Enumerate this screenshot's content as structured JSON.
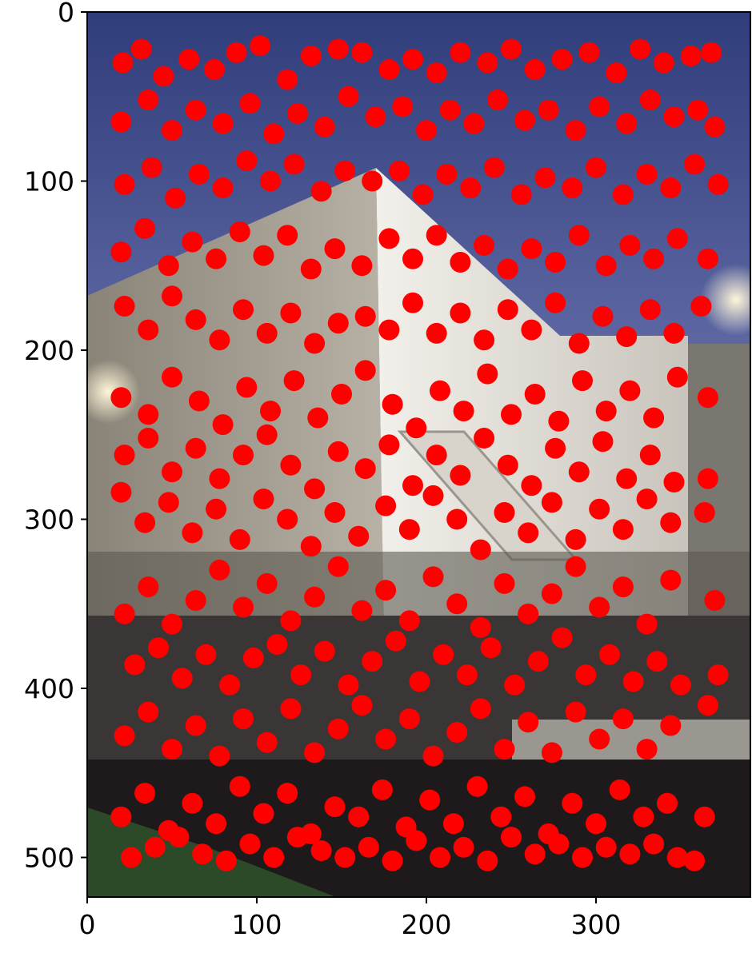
{
  "chart_data": {
    "type": "scatter",
    "title": "",
    "xlabel": "",
    "ylabel": "",
    "xlim": [
      0,
      390
    ],
    "ylim": [
      525,
      0
    ],
    "y_inverted": true,
    "grid": false,
    "legend": "none",
    "background": "photograph of a lit building with a staircase at dusk",
    "marker_color": "#ff0000",
    "marker_shape": "circle",
    "x_ticks": [
      {
        "value": 0,
        "label": "0"
      },
      {
        "value": 100,
        "label": "100"
      },
      {
        "value": 200,
        "label": "200"
      },
      {
        "value": 300,
        "label": "300"
      }
    ],
    "y_ticks": [
      {
        "value": 0,
        "label": "0"
      },
      {
        "value": 100,
        "label": "100"
      },
      {
        "value": 200,
        "label": "200"
      },
      {
        "value": 300,
        "label": "300"
      },
      {
        "value": 400,
        "label": "400"
      },
      {
        "value": 500,
        "label": "500"
      }
    ],
    "series": [
      {
        "points": [
          [
            21,
            30
          ],
          [
            32,
            22
          ],
          [
            45,
            38
          ],
          [
            60,
            28
          ],
          [
            75,
            34
          ],
          [
            88,
            24
          ],
          [
            102,
            20
          ],
          [
            118,
            40
          ],
          [
            132,
            26
          ],
          [
            148,
            22
          ],
          [
            162,
            24
          ],
          [
            178,
            34
          ],
          [
            192,
            28
          ],
          [
            206,
            36
          ],
          [
            220,
            24
          ],
          [
            236,
            30
          ],
          [
            250,
            22
          ],
          [
            264,
            34
          ],
          [
            280,
            28
          ],
          [
            296,
            24
          ],
          [
            312,
            36
          ],
          [
            326,
            22
          ],
          [
            340,
            30
          ],
          [
            356,
            26
          ],
          [
            368,
            24
          ],
          [
            20,
            65
          ],
          [
            36,
            52
          ],
          [
            50,
            70
          ],
          [
            64,
            58
          ],
          [
            80,
            66
          ],
          [
            96,
            54
          ],
          [
            110,
            72
          ],
          [
            124,
            60
          ],
          [
            140,
            68
          ],
          [
            154,
            50
          ],
          [
            170,
            62
          ],
          [
            186,
            56
          ],
          [
            200,
            70
          ],
          [
            214,
            58
          ],
          [
            228,
            66
          ],
          [
            242,
            52
          ],
          [
            258,
            64
          ],
          [
            272,
            58
          ],
          [
            288,
            70
          ],
          [
            302,
            56
          ],
          [
            318,
            66
          ],
          [
            332,
            52
          ],
          [
            346,
            62
          ],
          [
            360,
            58
          ],
          [
            370,
            68
          ],
          [
            22,
            102
          ],
          [
            38,
            92
          ],
          [
            52,
            110
          ],
          [
            66,
            96
          ],
          [
            80,
            104
          ],
          [
            94,
            88
          ],
          [
            108,
            100
          ],
          [
            122,
            90
          ],
          [
            138,
            106
          ],
          [
            152,
            94
          ],
          [
            168,
            100
          ],
          [
            184,
            94
          ],
          [
            198,
            108
          ],
          [
            212,
            96
          ],
          [
            226,
            104
          ],
          [
            240,
            92
          ],
          [
            256,
            108
          ],
          [
            270,
            98
          ],
          [
            286,
            104
          ],
          [
            300,
            92
          ],
          [
            316,
            108
          ],
          [
            330,
            96
          ],
          [
            344,
            104
          ],
          [
            358,
            90
          ],
          [
            372,
            102
          ],
          [
            20,
            142
          ],
          [
            34,
            128
          ],
          [
            48,
            150
          ],
          [
            62,
            136
          ],
          [
            76,
            146
          ],
          [
            90,
            130
          ],
          [
            104,
            144
          ],
          [
            118,
            132
          ],
          [
            132,
            152
          ],
          [
            146,
            140
          ],
          [
            162,
            150
          ],
          [
            178,
            134
          ],
          [
            192,
            146
          ],
          [
            206,
            132
          ],
          [
            220,
            148
          ],
          [
            234,
            138
          ],
          [
            248,
            152
          ],
          [
            262,
            140
          ],
          [
            276,
            148
          ],
          [
            290,
            132
          ],
          [
            306,
            150
          ],
          [
            320,
            138
          ],
          [
            334,
            146
          ],
          [
            348,
            134
          ],
          [
            366,
            146
          ],
          [
            22,
            174
          ],
          [
            36,
            188
          ],
          [
            50,
            168
          ],
          [
            64,
            182
          ],
          [
            78,
            194
          ],
          [
            92,
            176
          ],
          [
            106,
            190
          ],
          [
            120,
            178
          ],
          [
            134,
            196
          ],
          [
            148,
            184
          ],
          [
            164,
            180
          ],
          [
            178,
            188
          ],
          [
            192,
            172
          ],
          [
            206,
            190
          ],
          [
            220,
            178
          ],
          [
            234,
            194
          ],
          [
            248,
            176
          ],
          [
            262,
            188
          ],
          [
            276,
            172
          ],
          [
            290,
            196
          ],
          [
            304,
            180
          ],
          [
            318,
            192
          ],
          [
            332,
            176
          ],
          [
            346,
            190
          ],
          [
            362,
            174
          ],
          [
            20,
            228
          ],
          [
            36,
            238
          ],
          [
            50,
            216
          ],
          [
            66,
            230
          ],
          [
            80,
            244
          ],
          [
            94,
            222
          ],
          [
            108,
            236
          ],
          [
            122,
            218
          ],
          [
            136,
            240
          ],
          [
            150,
            226
          ],
          [
            164,
            212
          ],
          [
            180,
            232
          ],
          [
            194,
            246
          ],
          [
            208,
            224
          ],
          [
            222,
            236
          ],
          [
            236,
            214
          ],
          [
            250,
            238
          ],
          [
            264,
            226
          ],
          [
            278,
            242
          ],
          [
            292,
            218
          ],
          [
            306,
            236
          ],
          [
            320,
            224
          ],
          [
            334,
            240
          ],
          [
            348,
            216
          ],
          [
            366,
            228
          ],
          [
            22,
            262
          ],
          [
            36,
            252
          ],
          [
            50,
            272
          ],
          [
            64,
            258
          ],
          [
            78,
            276
          ],
          [
            92,
            262
          ],
          [
            106,
            250
          ],
          [
            120,
            268
          ],
          [
            134,
            282
          ],
          [
            148,
            260
          ],
          [
            164,
            270
          ],
          [
            178,
            256
          ],
          [
            192,
            280
          ],
          [
            206,
            262
          ],
          [
            220,
            274
          ],
          [
            234,
            252
          ],
          [
            248,
            268
          ],
          [
            262,
            280
          ],
          [
            276,
            258
          ],
          [
            290,
            272
          ],
          [
            304,
            254
          ],
          [
            318,
            276
          ],
          [
            332,
            262
          ],
          [
            346,
            278
          ],
          [
            366,
            276
          ],
          [
            20,
            284
          ],
          [
            34,
            302
          ],
          [
            48,
            290
          ],
          [
            62,
            308
          ],
          [
            76,
            294
          ],
          [
            90,
            312
          ],
          [
            104,
            288
          ],
          [
            118,
            300
          ],
          [
            132,
            316
          ],
          [
            146,
            296
          ],
          [
            160,
            310
          ],
          [
            176,
            292
          ],
          [
            190,
            306
          ],
          [
            204,
            286
          ],
          [
            218,
            300
          ],
          [
            232,
            318
          ],
          [
            246,
            296
          ],
          [
            260,
            308
          ],
          [
            274,
            290
          ],
          [
            288,
            312
          ],
          [
            302,
            294
          ],
          [
            316,
            306
          ],
          [
            330,
            288
          ],
          [
            344,
            302
          ],
          [
            364,
            296
          ],
          [
            22,
            356
          ],
          [
            36,
            340
          ],
          [
            50,
            362
          ],
          [
            64,
            348
          ],
          [
            78,
            330
          ],
          [
            92,
            352
          ],
          [
            106,
            338
          ],
          [
            120,
            360
          ],
          [
            134,
            346
          ],
          [
            148,
            328
          ],
          [
            162,
            354
          ],
          [
            176,
            342
          ],
          [
            190,
            360
          ],
          [
            204,
            334
          ],
          [
            218,
            350
          ],
          [
            232,
            364
          ],
          [
            246,
            338
          ],
          [
            260,
            356
          ],
          [
            274,
            344
          ],
          [
            288,
            328
          ],
          [
            302,
            352
          ],
          [
            316,
            340
          ],
          [
            330,
            362
          ],
          [
            344,
            336
          ],
          [
            370,
            348
          ],
          [
            28,
            386
          ],
          [
            42,
            376
          ],
          [
            56,
            394
          ],
          [
            70,
            380
          ],
          [
            84,
            398
          ],
          [
            98,
            382
          ],
          [
            112,
            374
          ],
          [
            126,
            392
          ],
          [
            140,
            378
          ],
          [
            154,
            398
          ],
          [
            168,
            384
          ],
          [
            182,
            372
          ],
          [
            196,
            396
          ],
          [
            210,
            380
          ],
          [
            224,
            392
          ],
          [
            238,
            376
          ],
          [
            252,
            398
          ],
          [
            266,
            384
          ],
          [
            280,
            370
          ],
          [
            294,
            392
          ],
          [
            308,
            380
          ],
          [
            322,
            396
          ],
          [
            336,
            384
          ],
          [
            350,
            398
          ],
          [
            372,
            392
          ],
          [
            22,
            428
          ],
          [
            36,
            414
          ],
          [
            50,
            436
          ],
          [
            64,
            422
          ],
          [
            78,
            440
          ],
          [
            92,
            418
          ],
          [
            106,
            432
          ],
          [
            120,
            412
          ],
          [
            134,
            438
          ],
          [
            148,
            424
          ],
          [
            162,
            410
          ],
          [
            176,
            430
          ],
          [
            190,
            418
          ],
          [
            204,
            440
          ],
          [
            218,
            426
          ],
          [
            232,
            412
          ],
          [
            246,
            436
          ],
          [
            260,
            420
          ],
          [
            274,
            438
          ],
          [
            288,
            414
          ],
          [
            302,
            430
          ],
          [
            316,
            418
          ],
          [
            330,
            436
          ],
          [
            344,
            422
          ],
          [
            366,
            410
          ],
          [
            20,
            476
          ],
          [
            34,
            462
          ],
          [
            48,
            484
          ],
          [
            62,
            468
          ],
          [
            76,
            480
          ],
          [
            90,
            458
          ],
          [
            104,
            474
          ],
          [
            118,
            462
          ],
          [
            132,
            486
          ],
          [
            146,
            470
          ],
          [
            160,
            476
          ],
          [
            174,
            460
          ],
          [
            188,
            482
          ],
          [
            202,
            466
          ],
          [
            216,
            480
          ],
          [
            230,
            458
          ],
          [
            244,
            476
          ],
          [
            258,
            464
          ],
          [
            272,
            486
          ],
          [
            286,
            468
          ],
          [
            300,
            480
          ],
          [
            314,
            460
          ],
          [
            328,
            476
          ],
          [
            342,
            468
          ],
          [
            364,
            476
          ],
          [
            26,
            500
          ],
          [
            40,
            494
          ],
          [
            54,
            488
          ],
          [
            68,
            498
          ],
          [
            82,
            502
          ],
          [
            96,
            492
          ],
          [
            110,
            500
          ],
          [
            124,
            488
          ],
          [
            138,
            496
          ],
          [
            152,
            500
          ],
          [
            166,
            494
          ],
          [
            180,
            502
          ],
          [
            194,
            490
          ],
          [
            208,
            500
          ],
          [
            222,
            494
          ],
          [
            236,
            502
          ],
          [
            250,
            488
          ],
          [
            264,
            498
          ],
          [
            278,
            492
          ],
          [
            292,
            500
          ],
          [
            306,
            494
          ],
          [
            320,
            498
          ],
          [
            334,
            492
          ],
          [
            348,
            500
          ],
          [
            358,
            502
          ]
        ]
      }
    ]
  }
}
